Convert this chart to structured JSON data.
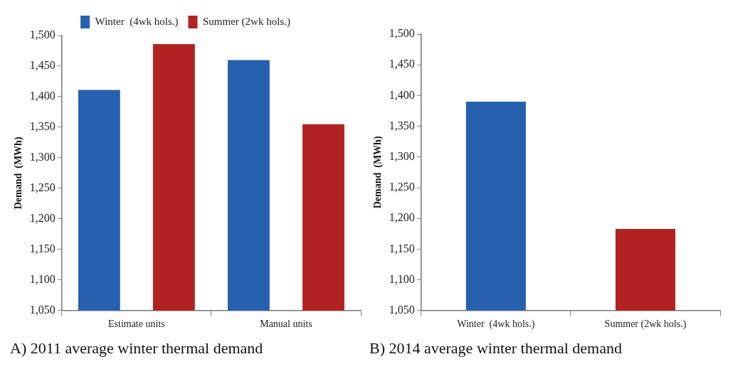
{
  "chart_data": [
    {
      "type": "bar",
      "title": "A) 2011 average winter thermal demand",
      "ylabel": "Demand  (MWh)",
      "categories": [
        "Estimate units",
        "Manual units"
      ],
      "series": [
        {
          "name": "Winter  (4wk hols.)",
          "color": "#2660ae",
          "values": [
            1411,
            1460
          ]
        },
        {
          "name": "Summer (2wk hols.)",
          "color": "#b22222",
          "values": [
            1486,
            1355
          ]
        }
      ],
      "ylim": [
        1050,
        1500
      ],
      "yticks": [
        {
          "value": 1050,
          "label": "1,050"
        },
        {
          "value": 1100,
          "label": "1,100"
        },
        {
          "value": 1150,
          "label": "1,150"
        },
        {
          "value": 1200,
          "label": "1,200"
        },
        {
          "value": 1250,
          "label": "1,250"
        },
        {
          "value": 1300,
          "label": "1,300"
        },
        {
          "value": 1350,
          "label": "1,350"
        },
        {
          "value": 1400,
          "label": "1,400"
        },
        {
          "value": 1450,
          "label": "1,450"
        },
        {
          "value": 1500,
          "label": "1,500"
        }
      ],
      "grid": false,
      "legend": "top"
    },
    {
      "type": "bar",
      "title": "B) 2014 average winter thermal demand",
      "ylabel": "Demand  (MWh)",
      "categories": [
        "Winter  (4wk hols.)",
        "Summer (2wk hols.)"
      ],
      "values": [
        1390,
        1183
      ],
      "colors": [
        "#2660ae",
        "#b22222"
      ],
      "ylim": [
        1050,
        1500
      ],
      "yticks": [
        {
          "value": 1050,
          "label": "1,050"
        },
        {
          "value": 1100,
          "label": "1,100"
        },
        {
          "value": 1150,
          "label": "1,150"
        },
        {
          "value": 1200,
          "label": "1,200"
        },
        {
          "value": 1250,
          "label": "1,250"
        },
        {
          "value": 1300,
          "label": "1,300"
        },
        {
          "value": 1350,
          "label": "1,350"
        },
        {
          "value": 1400,
          "label": "1,400"
        },
        {
          "value": 1450,
          "label": "1,450"
        },
        {
          "value": 1500,
          "label": "1,500"
        }
      ],
      "grid": false,
      "legend": false
    }
  ]
}
